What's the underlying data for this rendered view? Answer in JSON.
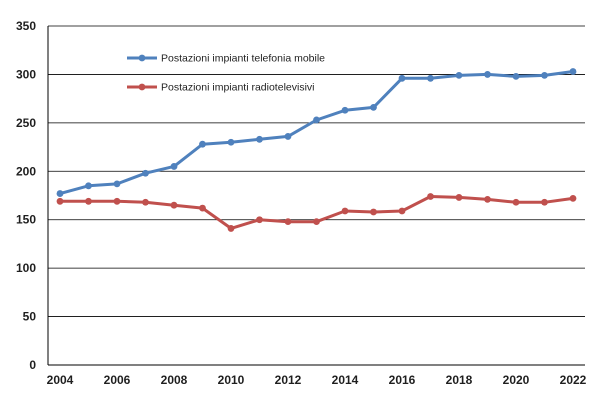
{
  "chart_data": {
    "type": "line",
    "title": "",
    "xlabel": "",
    "ylabel": "",
    "x": [
      2004,
      2005,
      2006,
      2007,
      2008,
      2009,
      2010,
      2011,
      2012,
      2013,
      2014,
      2015,
      2016,
      2017,
      2018,
      2019,
      2020,
      2021,
      2022
    ],
    "x_tick_labels": [
      "2004",
      "2006",
      "2008",
      "2010",
      "2012",
      "2014",
      "2016",
      "2018",
      "2020",
      "2022"
    ],
    "y_tick_labels": [
      "0",
      "50",
      "100",
      "150",
      "200",
      "250",
      "300",
      "350"
    ],
    "ylim": [
      0,
      350
    ],
    "xlim": [
      2004,
      2022
    ],
    "grid": true,
    "legend_position": "top-left",
    "series": [
      {
        "name": "Postazioni impianti telefonia mobile",
        "color": "#4f81bd",
        "values": [
          177,
          185,
          187,
          198,
          205,
          228,
          230,
          233,
          236,
          253,
          263,
          266,
          296,
          296,
          299,
          300,
          298,
          299,
          303
        ]
      },
      {
        "name": "Postazioni impianti radiotelevisivi",
        "color": "#c0504d",
        "values": [
          169,
          169,
          169,
          168,
          165,
          162,
          141,
          150,
          148,
          148,
          159,
          158,
          159,
          174,
          173,
          171,
          168,
          168,
          172
        ]
      }
    ]
  }
}
